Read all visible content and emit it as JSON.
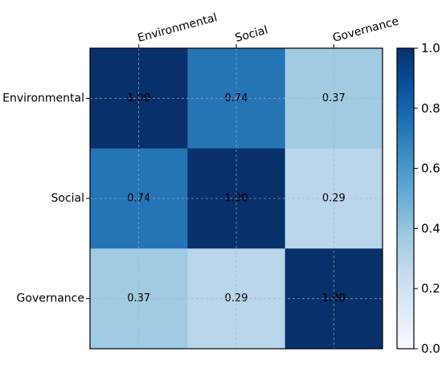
{
  "chart_data": {
    "type": "heatmap",
    "title": "",
    "xlabel": "",
    "ylabel": "",
    "x_categories": [
      "Environmental",
      "Social",
      "Governance"
    ],
    "y_categories": [
      "Environmental",
      "Social",
      "Governance"
    ],
    "values": [
      [
        1.0,
        0.74,
        0.37
      ],
      [
        0.74,
        1.0,
        0.29
      ],
      [
        0.37,
        0.29,
        1.0
      ]
    ],
    "cell_labels": [
      [
        "1.00",
        "0.74",
        "0.37"
      ],
      [
        "0.74",
        "1.00",
        "0.29"
      ],
      [
        "0.37",
        "0.29",
        "1.00"
      ]
    ],
    "x_tick_position": "top",
    "x_tick_rotation_deg": -15,
    "grid": true,
    "colormap": "Blues",
    "colorbar": {
      "range": [
        0.0,
        1.0
      ],
      "ticks": [
        0.0,
        0.2,
        0.4,
        0.6,
        0.8,
        1.0
      ],
      "tick_labels": [
        "0.0",
        "0.2",
        "0.4",
        "0.6",
        "0.8",
        "1.0"
      ]
    }
  }
}
